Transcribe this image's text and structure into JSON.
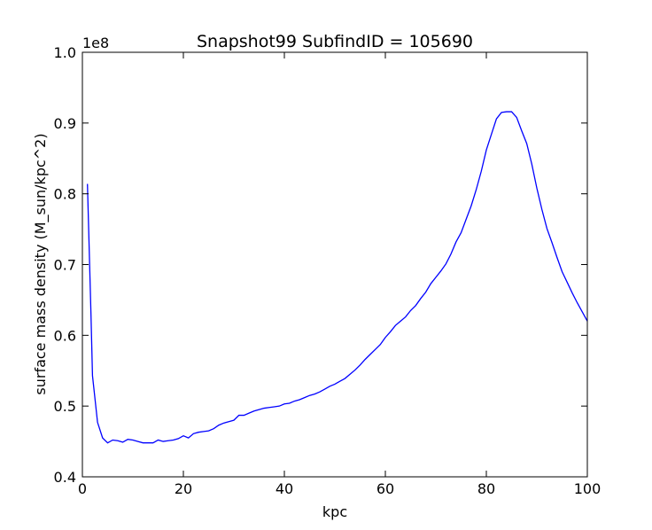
{
  "chart_data": {
    "type": "line",
    "title": "Snapshot99 SubfindID = 105690",
    "xlabel": "kpc",
    "ylabel": "surface mass density (M_sun/kpc^2)",
    "y_scale_label": "1e8",
    "xlim": [
      0,
      100
    ],
    "ylim": [
      0.4,
      1.0
    ],
    "x_ticks": [
      "0",
      "20",
      "40",
      "60",
      "80",
      "100"
    ],
    "y_ticks": [
      "0.4",
      "0.5",
      "0.6",
      "0.7",
      "0.8",
      "0.9",
      "1.0"
    ],
    "grid": false,
    "line_color": "#0000ff",
    "series": [
      {
        "x": [
          1,
          1.7,
          2,
          3,
          4,
          5,
          6,
          7,
          8,
          9,
          10,
          11,
          12,
          13,
          14,
          15,
          16,
          17,
          18,
          19,
          20,
          21,
          22,
          23,
          24,
          25,
          26,
          27,
          28,
          29,
          30,
          31,
          32,
          33,
          34,
          35,
          36,
          37,
          38,
          39,
          40,
          41,
          42,
          43,
          44,
          45,
          46,
          47,
          48,
          49,
          50,
          51,
          52,
          53,
          54,
          55,
          56,
          57,
          58,
          59,
          60,
          61,
          62,
          63,
          64,
          65,
          66,
          67,
          68,
          69,
          70,
          71,
          72,
          73,
          74,
          75,
          76,
          77,
          78,
          79,
          80,
          81,
          82,
          83,
          84,
          85,
          86,
          87,
          88,
          89,
          90,
          91,
          92,
          93,
          94,
          95,
          96,
          97,
          98,
          99,
          100
        ],
        "y": [
          0.814,
          0.63,
          0.543,
          0.477,
          0.455,
          0.448,
          0.452,
          0.451,
          0.449,
          0.453,
          0.452,
          0.45,
          0.448,
          0.448,
          0.448,
          0.452,
          0.45,
          0.451,
          0.452,
          0.454,
          0.458,
          0.455,
          0.461,
          0.463,
          0.464,
          0.465,
          0.468,
          0.473,
          0.476,
          0.478,
          0.48,
          0.487,
          0.487,
          0.49,
          0.493,
          0.495,
          0.497,
          0.498,
          0.499,
          0.5,
          0.503,
          0.504,
          0.507,
          0.509,
          0.512,
          0.515,
          0.517,
          0.52,
          0.524,
          0.528,
          0.531,
          0.535,
          0.539,
          0.545,
          0.551,
          0.558,
          0.566,
          0.573,
          0.58,
          0.587,
          0.597,
          0.605,
          0.614,
          0.62,
          0.626,
          0.635,
          0.642,
          0.652,
          0.661,
          0.673,
          0.682,
          0.691,
          0.701,
          0.715,
          0.732,
          0.745,
          0.764,
          0.783,
          0.806,
          0.832,
          0.862,
          0.884,
          0.906,
          0.915,
          0.916,
          0.916,
          0.908,
          0.889,
          0.871,
          0.842,
          0.808,
          0.778,
          0.751,
          0.731,
          0.71,
          0.69,
          0.675,
          0.66,
          0.646,
          0.633,
          0.62
        ]
      }
    ]
  }
}
